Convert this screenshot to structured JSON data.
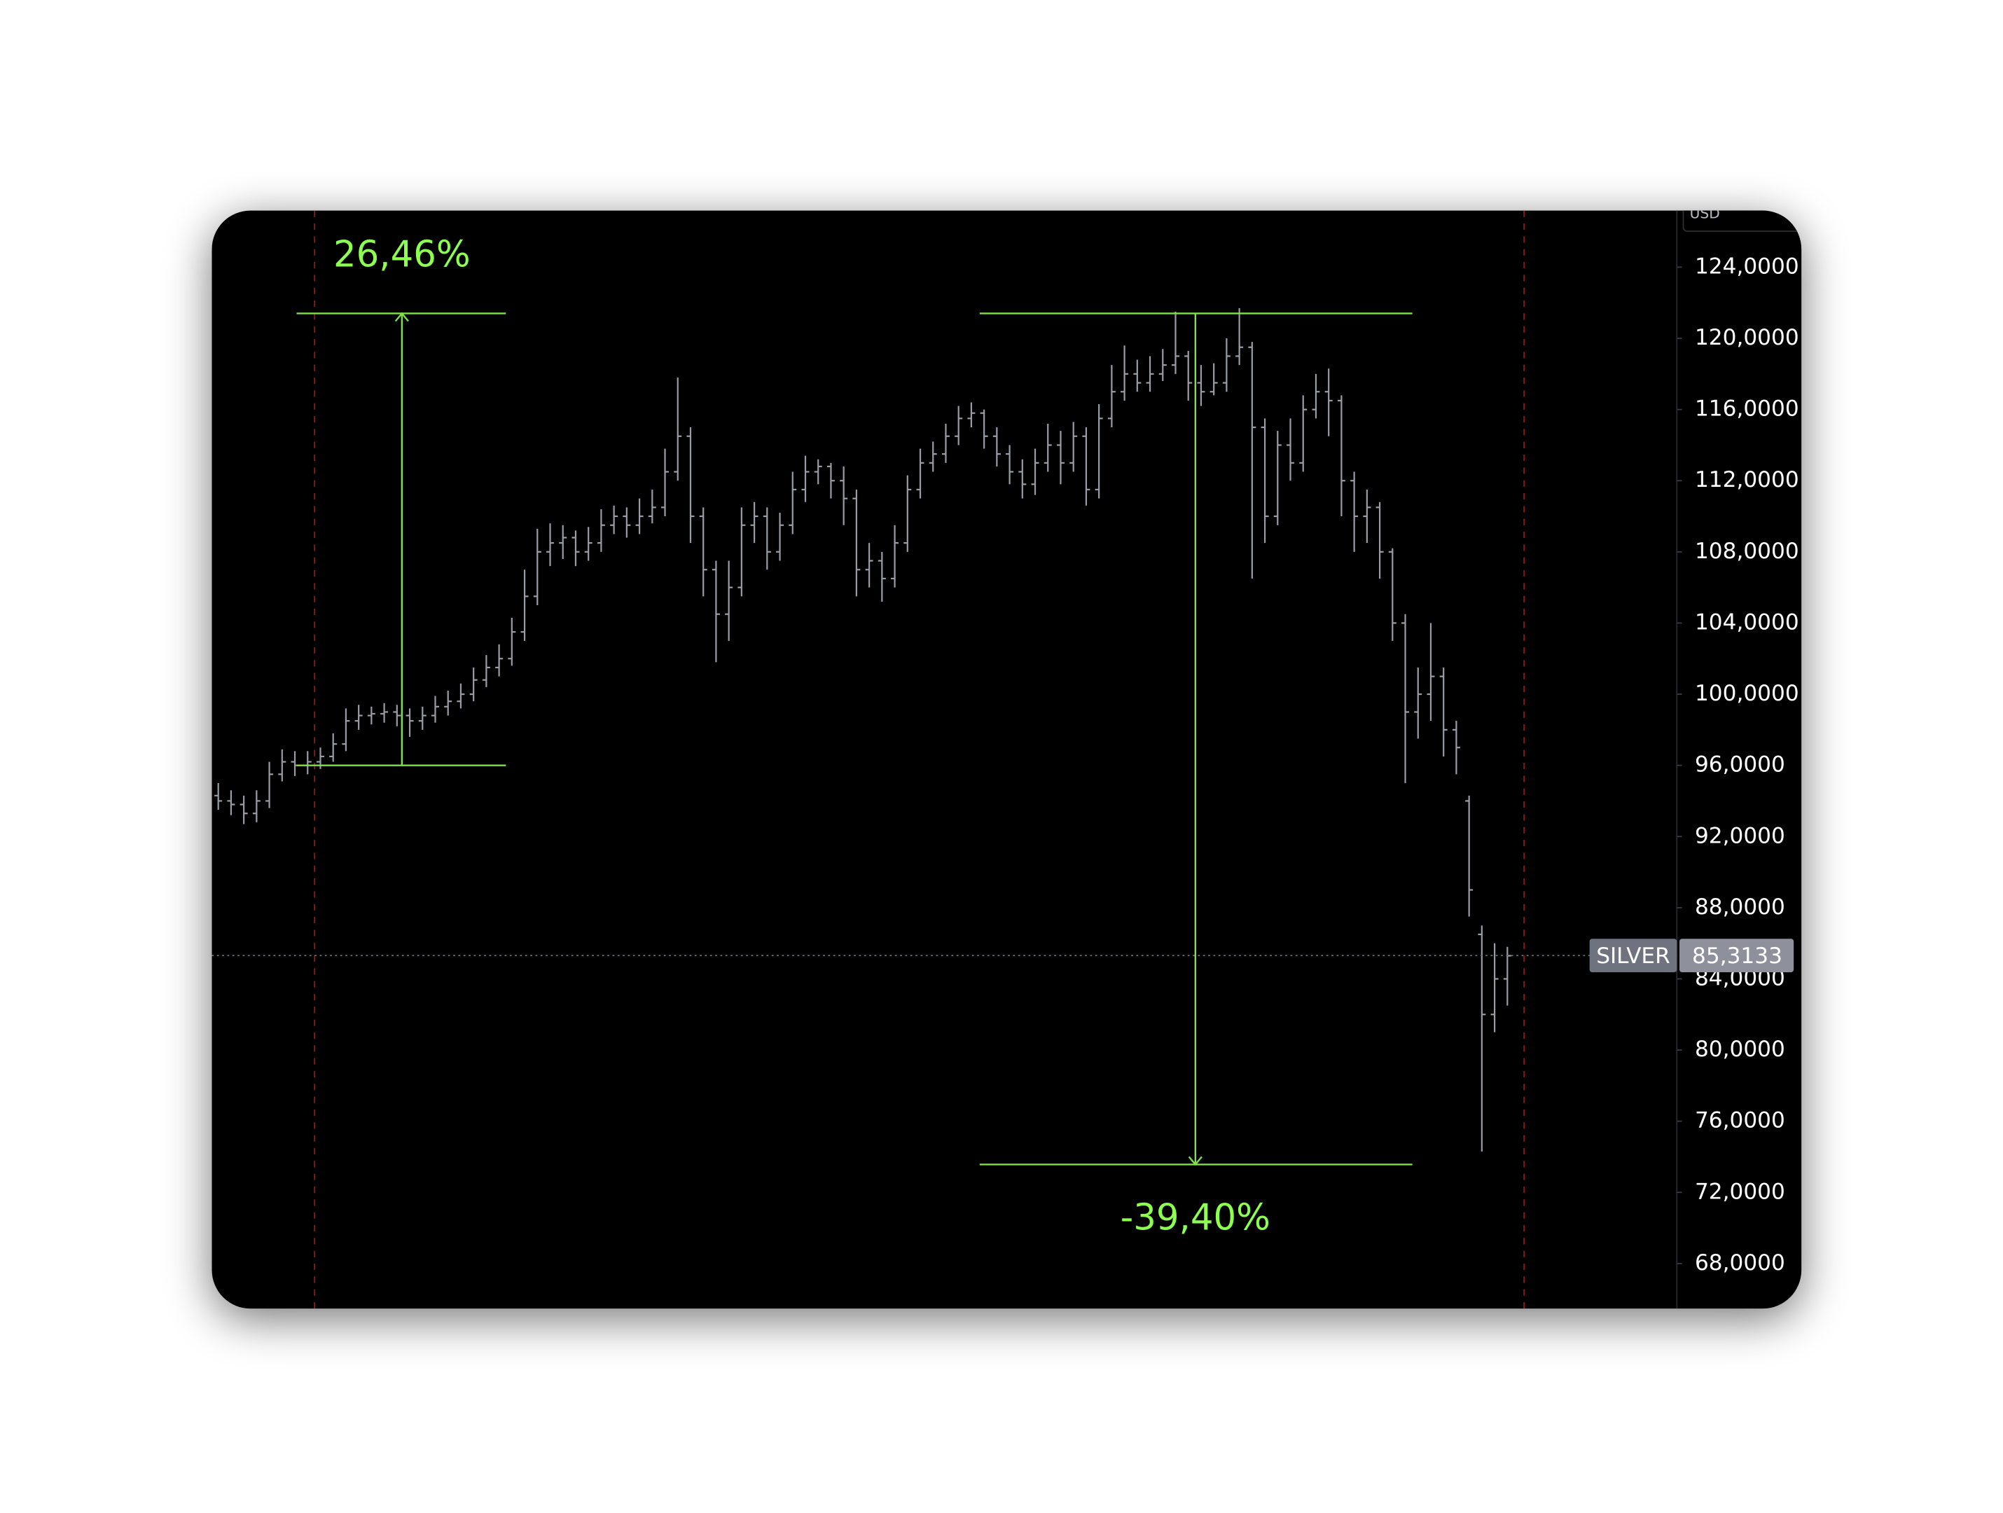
{
  "chart_data": {
    "type": "ohlc",
    "currency": "USD",
    "color": "#9a9da6",
    "ylim": [
      65.47,
      127.18
    ],
    "yticks": [
      {
        "value": 124,
        "label": "124,0000"
      },
      {
        "value": 120,
        "label": "120,0000"
      },
      {
        "value": 116,
        "label": "116,0000"
      },
      {
        "value": 112,
        "label": "112,0000"
      },
      {
        "value": 108,
        "label": "108,0000"
      },
      {
        "value": 104,
        "label": "104,0000"
      },
      {
        "value": 100,
        "label": "100,0000"
      },
      {
        "value": 96,
        "label": "96,0000"
      },
      {
        "value": 92,
        "label": "92,0000"
      },
      {
        "value": 88,
        "label": "88,0000"
      },
      {
        "value": 84,
        "label": "84,0000"
      },
      {
        "value": 80,
        "label": "80,0000"
      },
      {
        "value": 76,
        "label": "76,0000"
      },
      {
        "value": 72,
        "label": "72,0000"
      },
      {
        "value": 68,
        "label": "68,0000"
      }
    ],
    "open": [
      94.3,
      94,
      93.8,
      93.3,
      94,
      95.5,
      96.2,
      96,
      96.2,
      96.5,
      97.2,
      98.5,
      98.8,
      98.9,
      99,
      98.8,
      98.5,
      98.8,
      99.3,
      99.6,
      100,
      100.8,
      101.5,
      102,
      103.5,
      105.5,
      108,
      108.5,
      108.8,
      108,
      108.5,
      109.5,
      110,
      109.5,
      110,
      110.5,
      112.5,
      114.5,
      110,
      107,
      104.5,
      106,
      109.5,
      110,
      108,
      109.5,
      111.5,
      112.5,
      112.8,
      112,
      111,
      107,
      107.5,
      106.5,
      108.5,
      111.5,
      113,
      113.5,
      114.5,
      115.5,
      115.8,
      114.5,
      113.5,
      112.5,
      111.8,
      113,
      114,
      113,
      114.5,
      111.5,
      115.5,
      117,
      118,
      117.5,
      118,
      118.5,
      119,
      117.5,
      117,
      117.5,
      119,
      119.5,
      115,
      110,
      114,
      113,
      116,
      117,
      116.5,
      112,
      110,
      110.5,
      108,
      104,
      99,
      100,
      101,
      98,
      94,
      86.5,
      82,
      84
    ],
    "high": [
      95,
      94.6,
      94.3,
      94.6,
      96.2,
      96.9,
      96.8,
      96.8,
      97,
      97.8,
      99.2,
      99.4,
      99.3,
      99.5,
      99.4,
      99.2,
      99.3,
      99.9,
      100.2,
      100.6,
      101.5,
      102.2,
      102.8,
      104.3,
      107,
      109.3,
      109.6,
      109.5,
      109.2,
      109.4,
      110.4,
      110.6,
      110.5,
      111,
      111.5,
      113.8,
      117.8,
      115,
      110.5,
      107.5,
      107.5,
      110.5,
      110.8,
      110.5,
      110.2,
      112.5,
      113.4,
      113.2,
      113,
      112.8,
      111.5,
      108.5,
      108,
      109.5,
      112.3,
      113.8,
      114.2,
      115.2,
      116.2,
      116.4,
      116,
      115,
      114,
      113.2,
      113.8,
      115.2,
      114.8,
      115.3,
      115,
      116.3,
      118.5,
      119.6,
      118.8,
      119,
      119.4,
      121.5,
      119.3,
      118.5,
      118.6,
      120,
      121.7,
      119.8,
      115.5,
      114.8,
      115.5,
      116.8,
      118,
      118.3,
      116.8,
      112.5,
      111.5,
      110.8,
      108.2,
      104.5,
      101.5,
      104,
      101.5,
      98.5,
      94.3,
      87,
      86,
      85.8
    ],
    "low": [
      93.5,
      93.2,
      92.7,
      92.8,
      93.6,
      95.1,
      95.4,
      95.5,
      95.8,
      96.2,
      96.8,
      98,
      98.3,
      98.4,
      98.2,
      97.6,
      98,
      98.4,
      98.8,
      99.2,
      99.6,
      100.4,
      101,
      101.6,
      103,
      105,
      107.2,
      107.6,
      107.2,
      107.5,
      108,
      109,
      108.8,
      109,
      109.6,
      110,
      112,
      108.5,
      105.5,
      101.8,
      103,
      105.5,
      108.5,
      107,
      107.5,
      109,
      110.8,
      111.8,
      111,
      109.5,
      105.5,
      106,
      105.2,
      106,
      108,
      111,
      112.5,
      113,
      114,
      115,
      113.8,
      112.8,
      111.8,
      111,
      111.2,
      112.5,
      111.8,
      112.5,
      110.6,
      111,
      115,
      116.5,
      117,
      117,
      117.6,
      118,
      116.5,
      116.2,
      116.8,
      117,
      118.5,
      106.5,
      108.5,
      109.5,
      112,
      112.5,
      115.5,
      114.5,
      110,
      108,
      108.5,
      106.5,
      103,
      95,
      97.5,
      98.5,
      96.5,
      95.5,
      87.5,
      74.3,
      81,
      82.5
    ],
    "close": [
      94,
      93.8,
      93.3,
      94,
      95.5,
      96.2,
      96,
      96.2,
      96.5,
      97.2,
      98.5,
      98.8,
      98.9,
      99,
      98.8,
      98.5,
      98.8,
      99.3,
      99.6,
      100,
      100.8,
      101.5,
      102,
      103.5,
      105.5,
      108,
      108.5,
      108.8,
      108,
      108.5,
      109.5,
      110,
      109.5,
      110,
      110.5,
      112.5,
      114.5,
      110,
      107,
      104.5,
      106,
      109.5,
      110,
      108,
      109.5,
      111.5,
      112.5,
      112.8,
      112,
      111,
      107,
      107.5,
      106.5,
      108.5,
      111.5,
      113,
      113.5,
      114.5,
      115.5,
      115.8,
      114.5,
      113.5,
      112.5,
      111.8,
      113,
      114,
      113,
      114.5,
      111.5,
      115.5,
      117,
      118,
      117.5,
      118,
      118.5,
      119,
      117.5,
      117,
      117.5,
      119,
      119.5,
      115,
      110,
      114,
      113,
      116,
      117,
      116.5,
      112,
      110,
      110.5,
      108,
      104,
      99,
      100,
      101,
      98,
      97,
      89,
      82,
      84,
      85.3
    ],
    "price_line": {
      "label": "SILVER",
      "value": 85.3133,
      "value_label": "85,3133"
    },
    "annotations": [
      {
        "label": "26,46%",
        "from": 96.0,
        "to": 121.4
      },
      {
        "label": "-39,40%",
        "from": 121.4,
        "to": 73.57
      }
    ]
  }
}
